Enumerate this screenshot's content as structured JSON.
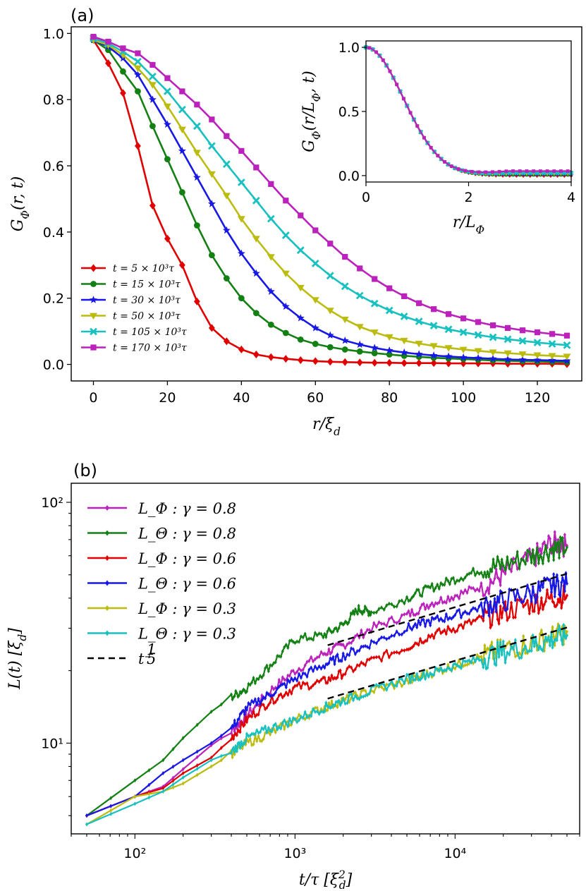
{
  "panel_a_label": "(a)",
  "panel_b_label": "(b)",
  "chart_data": [
    {
      "type": "line",
      "xlabel": "r/ξ_d",
      "ylabel": "G_Φ(r, t)",
      "xlim": [
        -6,
        132
      ],
      "ylim": [
        -0.05,
        1.02
      ],
      "xticks": [
        "0",
        "20",
        "40",
        "60",
        "80",
        "100",
        "120"
      ],
      "yticks": [
        "0.0",
        "0.2",
        "0.4",
        "0.6",
        "0.8",
        "1.0"
      ],
      "legend_position": "lower-left",
      "r": [
        0,
        4,
        8,
        12,
        16,
        20,
        24,
        28,
        32,
        36,
        40,
        44,
        48,
        52,
        56,
        60,
        64,
        68,
        72,
        76,
        80,
        84,
        88,
        92,
        96,
        100,
        104,
        108,
        112,
        116,
        120,
        124,
        128
      ],
      "series": [
        {
          "name": "t = 5 × 10³τ",
          "color": "#e00000",
          "marker": "diamond",
          "values": [
            0.98,
            0.91,
            0.82,
            0.66,
            0.48,
            0.38,
            0.3,
            0.19,
            0.11,
            0.07,
            0.045,
            0.03,
            0.022,
            0.017,
            0.013,
            0.01,
            0.008,
            0.007,
            0.006,
            0.005,
            0.005,
            0.004,
            0.004,
            0.004,
            0.003,
            0.003,
            0.003,
            0.003,
            0.002,
            0.002,
            0.002,
            0.002,
            0.001
          ]
        },
        {
          "name": "t = 15 × 10³τ",
          "color": "#138013",
          "marker": "circle",
          "values": [
            0.98,
            0.95,
            0.885,
            0.825,
            0.72,
            0.62,
            0.52,
            0.42,
            0.33,
            0.26,
            0.2,
            0.155,
            0.12,
            0.095,
            0.075,
            0.062,
            0.052,
            0.045,
            0.039,
            0.034,
            0.03,
            0.026,
            0.023,
            0.02,
            0.018,
            0.016,
            0.014,
            0.012,
            0.011,
            0.01,
            0.009,
            0.008,
            0.007
          ]
        },
        {
          "name": "t = 30 × 10³τ",
          "color": "#1818e6",
          "marker": "star",
          "values": [
            0.98,
            0.96,
            0.925,
            0.875,
            0.8,
            0.725,
            0.645,
            0.565,
            0.485,
            0.405,
            0.335,
            0.275,
            0.22,
            0.175,
            0.14,
            0.11,
            0.088,
            0.072,
            0.06,
            0.05,
            0.042,
            0.036,
            0.031,
            0.027,
            0.024,
            0.021,
            0.019,
            0.017,
            0.015,
            0.014,
            0.013,
            0.012,
            0.011
          ]
        },
        {
          "name": "t = 50 × 10³τ",
          "color": "#bcbc10",
          "marker": "tri",
          "values": [
            0.98,
            0.965,
            0.935,
            0.895,
            0.845,
            0.78,
            0.71,
            0.64,
            0.575,
            0.51,
            0.44,
            0.38,
            0.325,
            0.275,
            0.232,
            0.195,
            0.163,
            0.136,
            0.114,
            0.097,
            0.083,
            0.072,
            0.063,
            0.056,
            0.05,
            0.045,
            0.041,
            0.037,
            0.034,
            0.031,
            0.028,
            0.026,
            0.024
          ]
        },
        {
          "name": "t = 105 × 10³τ",
          "color": "#18c0c0",
          "marker": "x",
          "values": [
            0.985,
            0.97,
            0.945,
            0.915,
            0.87,
            0.825,
            0.77,
            0.72,
            0.66,
            0.605,
            0.55,
            0.495,
            0.44,
            0.39,
            0.345,
            0.305,
            0.268,
            0.236,
            0.208,
            0.184,
            0.163,
            0.145,
            0.13,
            0.117,
            0.106,
            0.097,
            0.089,
            0.082,
            0.076,
            0.071,
            0.066,
            0.062,
            0.058
          ]
        },
        {
          "name": "t = 170 × 10³τ",
          "color": "#bb22bb",
          "marker": "square",
          "values": [
            0.99,
            0.975,
            0.955,
            0.94,
            0.905,
            0.865,
            0.825,
            0.785,
            0.74,
            0.69,
            0.645,
            0.595,
            0.545,
            0.495,
            0.45,
            0.405,
            0.365,
            0.325,
            0.29,
            0.258,
            0.23,
            0.206,
            0.185,
            0.167,
            0.152,
            0.139,
            0.128,
            0.118,
            0.11,
            0.103,
            0.097,
            0.092,
            0.087
          ]
        }
      ],
      "inset": {
        "xlabel": "r/L_Φ",
        "ylabel": "G_Φ(r/L_Φ, t)",
        "xlim": [
          0,
          4
        ],
        "ylim": [
          -0.05,
          1.05
        ],
        "xticks": [
          "0",
          "2",
          "4"
        ],
        "yticks": [
          "0.0",
          "0.5",
          "1.0"
        ]
      }
    },
    {
      "type": "line",
      "xscale": "log",
      "yscale": "log",
      "xlabel": "t/τ [ξ_d²]",
      "ylabel": "L(t) [ξ_d]",
      "xlim": [
        40,
        60000
      ],
      "ylim": [
        4.2,
        120
      ],
      "xticks": [
        "10²",
        "10³",
        "10⁴"
      ],
      "yticks": [
        "10¹",
        "10²"
      ],
      "legend_position": "upper-left",
      "series": [
        {
          "name": "L_Φ : γ = 0.8",
          "color": "#bb22bb",
          "points": [
            [
              50,
              5.0
            ],
            [
              100,
              6.0
            ],
            [
              150,
              6.6
            ],
            [
              200,
              7.8
            ],
            [
              300,
              9.8
            ],
            [
              400,
              11.2
            ],
            [
              500,
              13.0
            ],
            [
              700,
              16.5
            ],
            [
              1000,
              20
            ],
            [
              1500,
              23.5
            ],
            [
              2000,
              25.5
            ],
            [
              3000,
              30
            ],
            [
              5000,
              34
            ],
            [
              7000,
              38
            ],
            [
              10000,
              41
            ],
            [
              15000,
              45
            ],
            [
              20000,
              50
            ],
            [
              30000,
              58
            ],
            [
              40000,
              68
            ],
            [
              50000,
              66
            ]
          ]
        },
        {
          "name": "L_Θ : γ = 0.8",
          "color": "#138013",
          "points": [
            [
              50,
              5.0
            ],
            [
              100,
              7.0
            ],
            [
              150,
              8.5
            ],
            [
              200,
              10.5
            ],
            [
              300,
              13.5
            ],
            [
              400,
              15.5
            ],
            [
              500,
              17
            ],
            [
              700,
              21
            ],
            [
              1000,
              27
            ],
            [
              1500,
              28
            ],
            [
              2000,
              31
            ],
            [
              2500,
              36
            ],
            [
              3000,
              35
            ],
            [
              5000,
              40
            ],
            [
              7000,
              44
            ],
            [
              10000,
              48
            ],
            [
              15000,
              53
            ],
            [
              20000,
              55
            ],
            [
              30000,
              60
            ],
            [
              40000,
              64
            ],
            [
              50000,
              65
            ]
          ]
        },
        {
          "name": "L_Φ : γ = 0.6",
          "color": "#e00000",
          "points": [
            [
              50,
              5.0
            ],
            [
              100,
              6.0
            ],
            [
              150,
              6.5
            ],
            [
              200,
              7.5
            ],
            [
              300,
              8.7
            ],
            [
              400,
              10.5
            ],
            [
              500,
              12.5
            ],
            [
              700,
              15
            ],
            [
              1000,
              17
            ],
            [
              1500,
              18
            ],
            [
              2000,
              19.5
            ],
            [
              3000,
              22
            ],
            [
              5000,
              25
            ],
            [
              7000,
              28
            ],
            [
              10000,
              30
            ],
            [
              15000,
              33
            ],
            [
              20000,
              35
            ],
            [
              30000,
              38
            ],
            [
              40000,
              40
            ],
            [
              50000,
              41
            ]
          ]
        },
        {
          "name": "L_Θ : γ = 0.6",
          "color": "#1818e6",
          "points": [
            [
              50,
              5.0
            ],
            [
              100,
              6.0
            ],
            [
              150,
              7.5
            ],
            [
              200,
              8.5
            ],
            [
              300,
              10
            ],
            [
              400,
              11.5
            ],
            [
              500,
              14
            ],
            [
              700,
              16
            ],
            [
              1000,
              18.5
            ],
            [
              1500,
              21
            ],
            [
              2000,
              23
            ],
            [
              3000,
              26
            ],
            [
              5000,
              30
            ],
            [
              7000,
              32
            ],
            [
              10000,
              34
            ],
            [
              15000,
              37
            ],
            [
              20000,
              39
            ],
            [
              30000,
              42
            ],
            [
              40000,
              45
            ],
            [
              50000,
              46
            ]
          ]
        },
        {
          "name": "L_Φ : γ = 0.3",
          "color": "#bcbc10",
          "points": [
            [
              50,
              4.6
            ],
            [
              100,
              6.0
            ],
            [
              150,
              6.3
            ],
            [
              200,
              6.8
            ],
            [
              300,
              8.0
            ],
            [
              400,
              9.0
            ],
            [
              500,
              10
            ],
            [
              700,
              11
            ],
            [
              1000,
              12.5
            ],
            [
              1500,
              14
            ],
            [
              2000,
              15
            ],
            [
              3000,
              16.5
            ],
            [
              5000,
              18
            ],
            [
              7000,
              19.5
            ],
            [
              10000,
              21
            ],
            [
              15000,
              23
            ],
            [
              20000,
              24.5
            ],
            [
              30000,
              26
            ],
            [
              40000,
              27.5
            ],
            [
              50000,
              29
            ]
          ]
        },
        {
          "name": "L_Θ : γ = 0.3",
          "color": "#18c0c0",
          "points": [
            [
              50,
              4.6
            ],
            [
              100,
              5.6
            ],
            [
              150,
              6.3
            ],
            [
              200,
              7.2
            ],
            [
              300,
              8.5
            ],
            [
              400,
              9.2
            ],
            [
              500,
              10.5
            ],
            [
              700,
              11.5
            ],
            [
              1000,
              12.5
            ],
            [
              1500,
              14
            ],
            [
              2000,
              15
            ],
            [
              3000,
              16.5
            ],
            [
              5000,
              18.5
            ],
            [
              7000,
              19.5
            ],
            [
              10000,
              21
            ],
            [
              15000,
              22.5
            ],
            [
              20000,
              24
            ],
            [
              30000,
              25.5
            ],
            [
              40000,
              27
            ],
            [
              50000,
              28
            ]
          ]
        }
      ],
      "guides": [
        {
          "name": "t^(1/5)",
          "label_base": "t",
          "label_exp_num": "1",
          "label_exp_den": "5",
          "style": "dashed",
          "color": "#000000",
          "lines": [
            [
              [
                1600,
                25.5
              ],
              [
                50000,
                50.5
              ]
            ],
            [
              [
                1600,
                15.3
              ],
              [
                50000,
                30.2
              ]
            ]
          ]
        }
      ]
    }
  ]
}
